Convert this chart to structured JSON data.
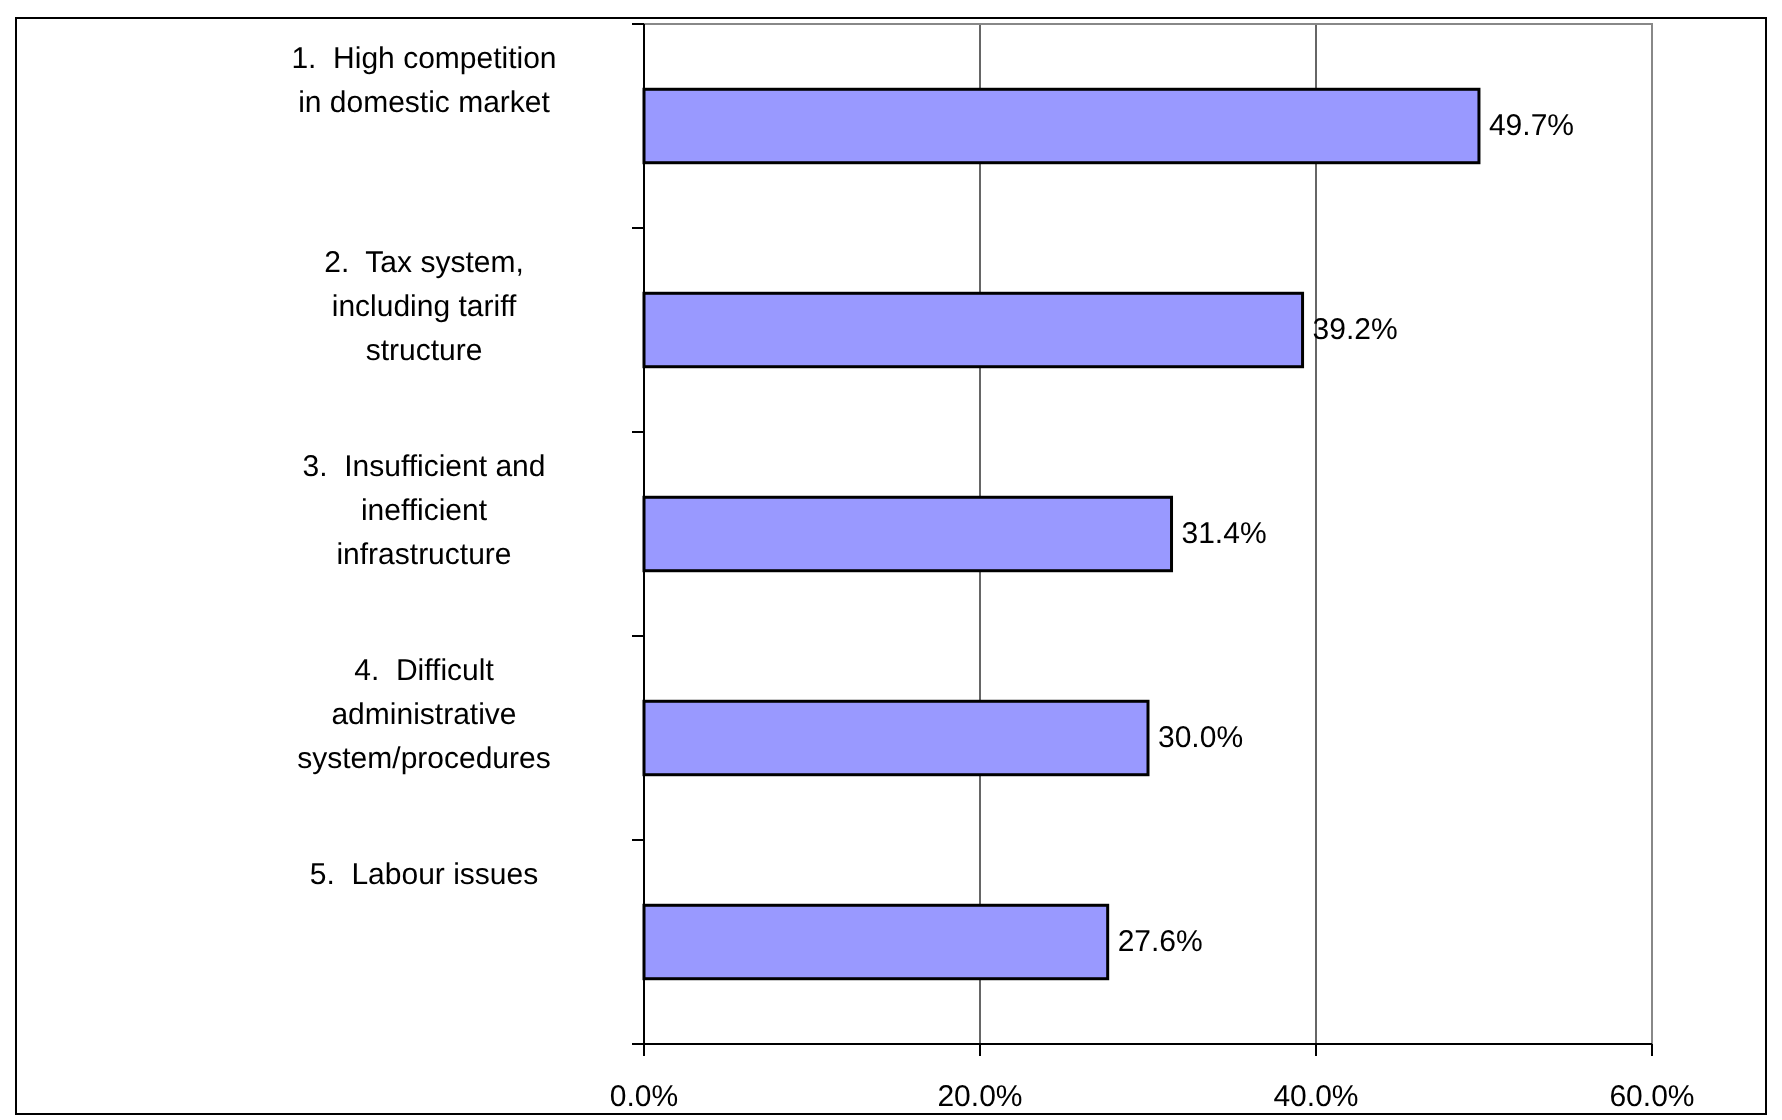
{
  "chart_data": {
    "type": "bar",
    "orientation": "horizontal",
    "categories": [
      "1.  High competition in domestic market",
      "2.  Tax system, including tariff structure",
      "3.  Insufficient and inefficient infrastructure",
      "4.  Difficult administrative system/procedures",
      "5.  Labour issues"
    ],
    "values": [
      49.7,
      39.2,
      31.4,
      30.0,
      27.6
    ],
    "value_labels": [
      "49.7%",
      "39.2%",
      "31.4%",
      "30.0%",
      "27.6%"
    ],
    "color": "#9999ff",
    "xlim": [
      0,
      60
    ],
    "xticks": [
      {
        "value": 0,
        "label": "0.0%"
      },
      {
        "value": 20,
        "label": "20.0%"
      },
      {
        "value": 40,
        "label": "40.0%"
      },
      {
        "value": 60,
        "label": "60.0%"
      }
    ],
    "grid": "x"
  }
}
